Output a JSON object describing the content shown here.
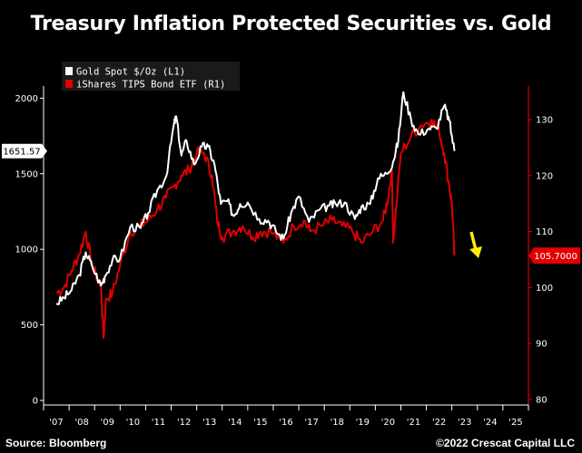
{
  "title": "Treasury Inflation Protected Securities vs. Gold",
  "footer": {
    "source": "Source: Bloomberg",
    "copyright": "©2022 Crescat Capital LLC"
  },
  "colors": {
    "background": "#000000",
    "gold": "#ffffff",
    "tips": "#e00000",
    "arrow": "#ffee00"
  },
  "chart_data": {
    "type": "line",
    "x_ticks": [
      "'07",
      "'08",
      "'09",
      "'10",
      "'11",
      "'12",
      "'13",
      "'14",
      "'15",
      "'16",
      "'17",
      "'18",
      "'19",
      "'20",
      "'21",
      "'22",
      "'23",
      "'24",
      "'25"
    ],
    "x_range": [
      2006.5,
      2025.5
    ],
    "left_axis": {
      "ticks": [
        "0",
        "500",
        "1000",
        "1500",
        "2000"
      ],
      "range": [
        -30,
        2080
      ]
    },
    "right_axis": {
      "ticks": [
        "80",
        "90",
        "100",
        "110",
        "120",
        "130"
      ],
      "range": [
        79,
        136
      ]
    },
    "legend": [
      {
        "label": "Gold Spot $/Oz  (L1)",
        "color": "#ffffff"
      },
      {
        "label": "iShares TIPS Bond ETF  (R1)",
        "color": "#e00000"
      }
    ],
    "last_value_labels": {
      "gold": "1651.57",
      "tips": "105.7000"
    },
    "annotation": "yellow downward arrow after TIPS drop",
    "series": [
      {
        "name": "Gold Spot $/Oz  (L1)",
        "axis": "left",
        "x": [
          2007.0,
          2007.3,
          2007.6,
          2007.9,
          2008.15,
          2008.4,
          2008.75,
          2008.9,
          2009.2,
          2009.5,
          2009.9,
          2010.3,
          2010.6,
          2010.95,
          2011.3,
          2011.6,
          2011.7,
          2011.9,
          2012.1,
          2012.4,
          2012.7,
          2012.95,
          2013.2,
          2013.45,
          2013.7,
          2013.95,
          2014.2,
          2014.5,
          2014.95,
          2015.3,
          2015.6,
          2015.9,
          2016.2,
          2016.5,
          2016.9,
          2017.3,
          2017.7,
          2017.95,
          2018.3,
          2018.7,
          2018.95,
          2019.3,
          2019.6,
          2019.95,
          2020.2,
          2020.4,
          2020.6,
          2020.9,
          2021.2,
          2021.6,
          2021.9,
          2022.2,
          2022.4,
          2022.6
        ],
        "y": [
          640,
          680,
          730,
          830,
          980,
          890,
          760,
          820,
          930,
          940,
          1150,
          1140,
          1240,
          1390,
          1480,
          1820,
          1880,
          1620,
          1720,
          1560,
          1680,
          1680,
          1560,
          1300,
          1320,
          1220,
          1300,
          1310,
          1200,
          1190,
          1120,
          1070,
          1240,
          1350,
          1180,
          1260,
          1290,
          1300,
          1310,
          1200,
          1280,
          1300,
          1470,
          1500,
          1580,
          1720,
          2040,
          1860,
          1760,
          1800,
          1800,
          1950,
          1850,
          1650
        ]
      },
      {
        "name": "iShares TIPS Bond ETF  (R1)",
        "axis": "right",
        "x": [
          2007.0,
          2007.3,
          2007.6,
          2007.9,
          2008.15,
          2008.4,
          2008.75,
          2008.85,
          2008.95,
          2009.2,
          2009.5,
          2009.9,
          2010.3,
          2010.6,
          2010.95,
          2011.3,
          2011.6,
          2011.9,
          2012.2,
          2012.5,
          2012.8,
          2013.1,
          2013.3,
          2013.5,
          2013.9,
          2014.3,
          2014.7,
          2015.0,
          2015.4,
          2015.9,
          2016.3,
          2016.7,
          2016.95,
          2017.4,
          2017.8,
          2018.2,
          2018.6,
          2018.95,
          2019.4,
          2019.8,
          2020.0,
          2020.15,
          2020.2,
          2020.5,
          2020.9,
          2021.3,
          2021.7,
          2022.0,
          2022.2,
          2022.4,
          2022.5,
          2022.6
        ],
        "y": [
          99,
          100,
          103,
          106,
          110,
          104,
          100,
          91,
          98,
          99,
          104,
          110,
          111,
          112,
          114,
          116,
          118,
          120,
          121,
          124,
          124,
          120,
          112,
          109,
          110,
          111,
          109,
          110,
          110,
          108,
          111,
          112,
          110,
          111,
          112,
          111,
          110,
          108,
          110,
          112,
          116,
          121,
          108,
          124,
          127,
          129,
          130,
          128,
          124,
          118,
          115,
          105.7
        ]
      }
    ]
  }
}
